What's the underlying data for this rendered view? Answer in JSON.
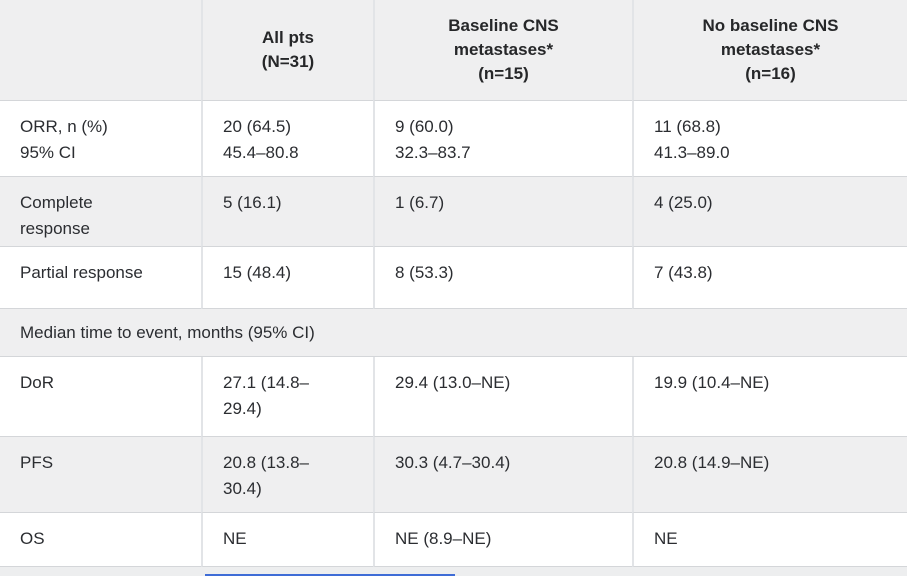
{
  "colors": {
    "stripe_gray": "#efeff0",
    "border_gray": "#d4d6d9",
    "divider_gray": "#e2e4e7",
    "text": "#2b2d31",
    "scrollbar_blue": "#3e6cd6"
  },
  "table": {
    "headers": [
      "",
      "All pts\n(N=31)",
      "Baseline CNS\nmetastases*\n(n=15)",
      "No baseline CNS\nmetastases*\n(n=16)"
    ],
    "rows": [
      {
        "label": "ORR, n (%)\n95% CI",
        "values": [
          "20 (64.5)\n45.4–80.8",
          "9 (60.0)\n32.3–83.7",
          "11 (68.8)\n41.3–89.0"
        ]
      },
      {
        "label": "Complete\nresponse",
        "values": [
          "5 (16.1)",
          "1 (6.7)",
          "4 (25.0)"
        ]
      },
      {
        "label": "Partial response",
        "values": [
          "15 (48.4)",
          "8 (53.3)",
          "7 (43.8)"
        ]
      },
      {
        "section": "Median time to event, months (95% CI)"
      },
      {
        "label": "DoR",
        "values": [
          "27.1 (14.8–\n29.4)",
          "29.4 (13.0–NE)",
          "19.9 (10.4–NE)"
        ]
      },
      {
        "label": "PFS",
        "values": [
          "20.8 (13.8–\n30.4)",
          "30.3 (4.7–30.4)",
          "20.8 (14.9–NE)"
        ]
      },
      {
        "label": "OS",
        "values": [
          "NE",
          "NE (8.9–NE)",
          "NE"
        ]
      }
    ]
  }
}
